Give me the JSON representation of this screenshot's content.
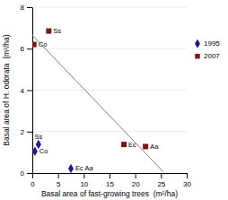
{
  "chart_data": {
    "type": "scatter",
    "xlabel": "Basal area of fast-growing trees  (m²/ha)",
    "ylabel": "Basal area of H. odorata  (m²/ha)",
    "xlim": [
      0,
      30
    ],
    "ylim": [
      0,
      8
    ],
    "xticks": [
      0,
      5,
      10,
      15,
      20,
      25,
      30
    ],
    "yticks": [
      0,
      2,
      4,
      6,
      8
    ],
    "grid": "y",
    "legend": "right",
    "series": [
      {
        "type": "line",
        "color": "gray",
        "line_style": "solid",
        "x": [
          0,
          25.5
        ],
        "values": [
          6.65,
          0.05
        ]
      },
      {
        "name": "1995",
        "type": "scatter",
        "color": "#1f1893",
        "marker": "diamond",
        "x": [
          0.5,
          1.2,
          7.5
        ],
        "values": [
          1.05,
          1.38,
          0.22
        ],
        "labels": [
          "Co",
          "Ss",
          "Ec Aa"
        ]
      },
      {
        "name": "2007",
        "type": "scatter",
        "color": "#7b1515",
        "marker": "square",
        "x": [
          0.3,
          3.2,
          17.8,
          22.0
        ],
        "values": [
          6.2,
          6.85,
          1.38,
          1.28
        ],
        "labels": [
          "Co",
          "Ss",
          "Ec",
          "Aa"
        ]
      }
    ]
  }
}
